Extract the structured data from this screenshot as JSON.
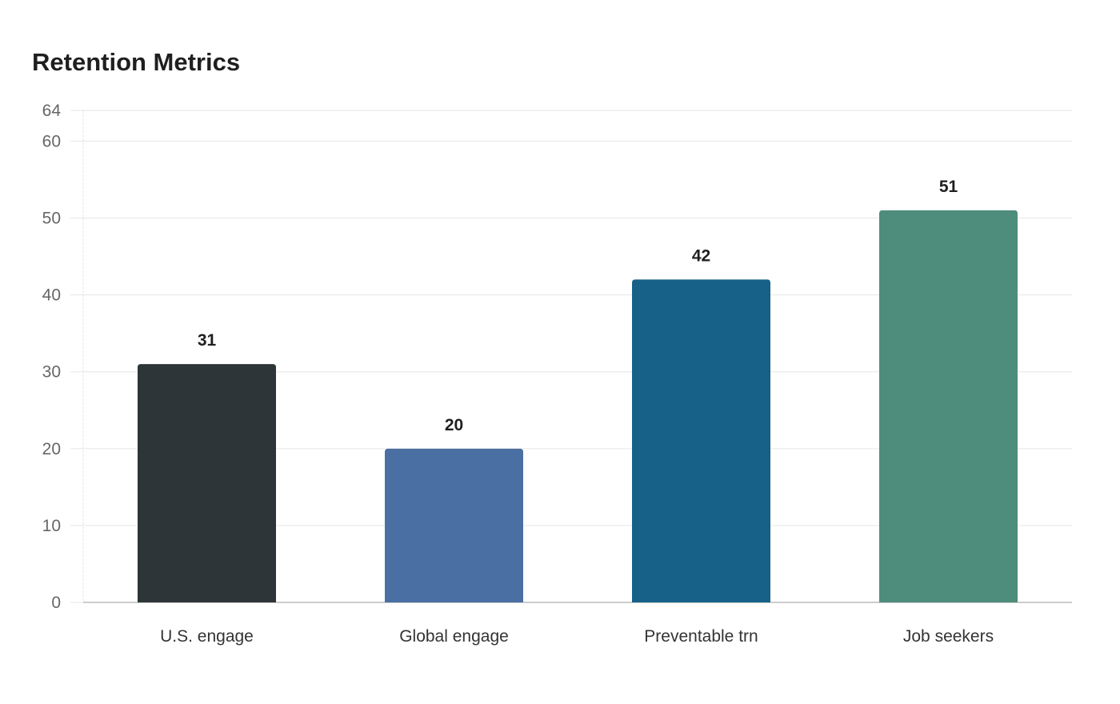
{
  "chart_data": {
    "type": "bar",
    "title": "Retention Metrics",
    "categories": [
      "U.S. engage",
      "Global engage",
      "Preventable trn",
      "Job seekers"
    ],
    "values": [
      31,
      20,
      42,
      51
    ],
    "bar_colors": [
      "#2d3538",
      "#4a6fa3",
      "#176188",
      "#4e8d7b"
    ],
    "yticks": [
      0,
      10,
      20,
      30,
      40,
      50,
      60,
      64
    ],
    "ylim": [
      0,
      64
    ],
    "xlabel": "",
    "ylabel": "",
    "grid": true,
    "legend": "none"
  }
}
